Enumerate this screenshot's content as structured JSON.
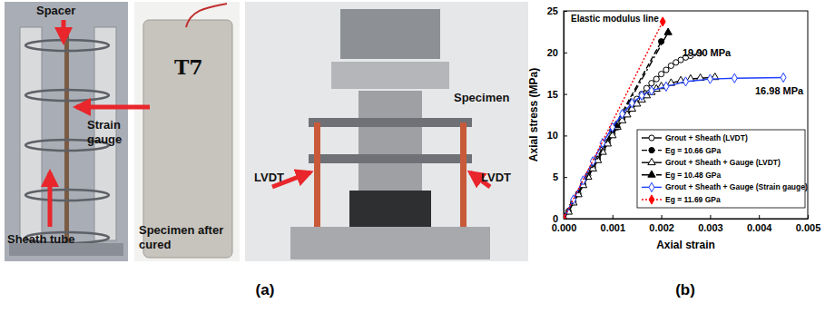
{
  "panel_labels": [
    "(a)",
    "(b)"
  ],
  "photos": [
    {
      "annotations": [
        {
          "lines": [
            "Spacer"
          ]
        },
        {
          "lines": [
            "Strain",
            "gauge"
          ]
        },
        {
          "lines": [
            "Sheath tube"
          ]
        }
      ]
    },
    {
      "annotations": [
        {
          "lines": [
            "T7"
          ]
        },
        {
          "lines": [
            "Specimen after",
            "cured"
          ]
        }
      ]
    },
    {
      "annotations": [
        {
          "lines": [
            "Specimen"
          ]
        },
        {
          "lines": [
            "LVDT"
          ]
        },
        {
          "lines": [
            "LVDT"
          ]
        }
      ]
    }
  ],
  "chart_data": {
    "type": "line",
    "x_label": "Axial strain",
    "y_label": "Axial stress (MPa)",
    "xlim": [
      0,
      0.005
    ],
    "ylim": [
      0,
      25
    ],
    "xticks": [
      {
        "value": 0,
        "label": "0.000"
      },
      {
        "value": 0.001,
        "label": "0.001"
      },
      {
        "value": 0.002,
        "label": "0.002"
      },
      {
        "value": 0.003,
        "label": "0.003"
      },
      {
        "value": 0.004,
        "label": "0.004"
      },
      {
        "value": 0.005,
        "label": "0.005"
      }
    ],
    "yticks": [
      0,
      5,
      10,
      15,
      20,
      25
    ],
    "legend": "lower right",
    "grid": false,
    "annotations": [
      "Elastic modulus line",
      "19.90 MPa",
      "16.98 MPa"
    ],
    "series": [
      {
        "name": "Grout + Sheath (LVDT)",
        "color": "#000000",
        "marker": "circle-open",
        "line_style": "solid",
        "x": [
          0,
          0.0001,
          0.0002,
          0.0003,
          0.0004,
          0.0005,
          0.0006,
          0.0007,
          0.0008,
          0.0009,
          0.001,
          0.0011,
          0.0012,
          0.0013,
          0.0014,
          0.0015,
          0.0016,
          0.0017,
          0.0018,
          0.0019,
          0.002,
          0.0021,
          0.0022,
          0.0023,
          0.0024,
          0.0025,
          0.0026,
          0.00278
        ],
        "values": [
          0,
          0.9,
          2.0,
          3.0,
          4.1,
          5.2,
          6.2,
          7.2,
          8.3,
          9.2,
          10.2,
          11.0,
          12.0,
          12.9,
          13.7,
          14.4,
          15.0,
          15.7,
          16.3,
          16.8,
          17.4,
          17.9,
          18.4,
          18.8,
          19.1,
          19.4,
          19.6,
          19.9
        ]
      },
      {
        "name": "Eg = 10.66 GPa",
        "color": "#000000",
        "marker": "circle",
        "line_style": "dashed",
        "x": [
          0,
          0.001,
          0.002
        ],
        "values": [
          0,
          10.66,
          21.32
        ]
      },
      {
        "name": "Grout + Sheath + Gauge (LVDT)",
        "color": "#000000",
        "marker": "triangle-open",
        "line_style": "solid",
        "x": [
          0,
          0.0001,
          0.0002,
          0.0003,
          0.0004,
          0.0005,
          0.0006,
          0.0007,
          0.0008,
          0.0009,
          0.001,
          0.0011,
          0.0012,
          0.0013,
          0.0014,
          0.0015,
          0.0016,
          0.0017,
          0.0018,
          0.0019,
          0.002,
          0.0022,
          0.0024,
          0.0026,
          0.0028,
          0.0031
        ],
        "values": [
          0,
          0.8,
          1.9,
          2.9,
          4.0,
          5.0,
          6.0,
          7.0,
          8.0,
          9.0,
          10.0,
          11.0,
          11.8,
          12.5,
          13.2,
          13.8,
          14.3,
          14.8,
          15.2,
          15.6,
          15.9,
          16.3,
          16.6,
          16.8,
          16.9,
          17.0
        ]
      },
      {
        "name": "Eg = 10.48 GPa",
        "color": "#000000",
        "marker": "triangle",
        "line_style": "dashdot",
        "x": [
          0,
          0.00107,
          0.00214
        ],
        "values": [
          0,
          11.2,
          22.4
        ]
      },
      {
        "name": "Grout + Sheath + Gauge (Strain gauge)",
        "color": "#1f3fff",
        "marker": "diamond-open",
        "line_style": "solid",
        "x": [
          0,
          0.0002,
          0.0004,
          0.0006,
          0.0008,
          0.001,
          0.0012,
          0.0014,
          0.0016,
          0.0018,
          0.0021,
          0.0025,
          0.003,
          0.0035,
          0.0045
        ],
        "values": [
          0,
          2.3,
          4.6,
          6.9,
          9.1,
          11.0,
          12.6,
          13.9,
          14.8,
          15.4,
          15.9,
          16.5,
          16.8,
          16.9,
          16.98
        ]
      },
      {
        "name": "Eg = 11.69 GPa",
        "color": "#ff0000",
        "marker": "diamond",
        "line_style": "dotted",
        "x": [
          0,
          0.00203
        ],
        "values": [
          0,
          23.7
        ]
      }
    ]
  }
}
